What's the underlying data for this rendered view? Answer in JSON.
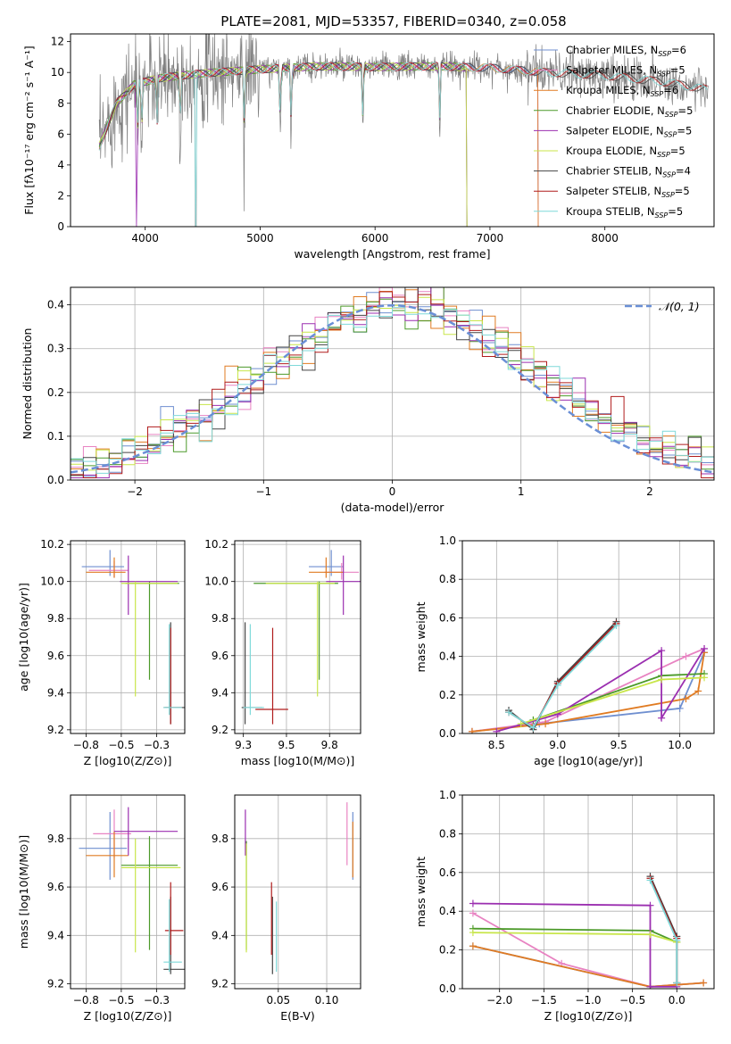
{
  "figure_title": "PLATE=2081, MJD=53357, FIBERID=0340, z=0.058",
  "colors": {
    "Chabrier MILES": "#6f8fd0",
    "Salpeter MILES": "#e883c2",
    "Kroupa MILES": "#e07b22",
    "Chabrier ELODIE": "#4c9a2a",
    "Salpeter ELODIE": "#9b2fb0",
    "Kroupa ELODIE": "#c8e64a",
    "Chabrier STELIB": "#444444",
    "Salpeter STELIB": "#b01c1c",
    "Kroupa STELIB": "#7fd9d9",
    "data": "#808080"
  },
  "chart_data": [
    {
      "id": "spectrum",
      "type": "line",
      "title": "PLATE=2081, MJD=53357, FIBERID=0340, z=0.058",
      "xlabel": "wavelength [Angstrom, rest frame]",
      "ylabel": "Flux [fλ10⁻¹⁷ erg cm⁻² s⁻¹ A⁻¹]",
      "xlim": [
        3350,
        8950
      ],
      "ylim": [
        0,
        12.5
      ],
      "xticks": [
        4000,
        5000,
        6000,
        7000,
        8000
      ],
      "yticks": [
        0,
        2,
        4,
        6,
        8,
        10,
        12
      ],
      "legend_position": "right",
      "legend": [
        {
          "label": "Chabrier MILES, N",
          "sub": "SSP",
          "n": "=6",
          "model": "Chabrier MILES"
        },
        {
          "label": "Salpeter MILES, N",
          "sub": "SSP",
          "n": "=5",
          "model": "Salpeter MILES"
        },
        {
          "label": "Kroupa MILES, N",
          "sub": "SSP",
          "n": "=6",
          "model": "Kroupa MILES"
        },
        {
          "label": "Chabrier ELODIE, N",
          "sub": "SSP",
          "n": "=5",
          "model": "Chabrier ELODIE"
        },
        {
          "label": "Salpeter ELODIE, N",
          "sub": "SSP",
          "n": "=5",
          "model": "Salpeter ELODIE"
        },
        {
          "label": "Kroupa ELODIE, N",
          "sub": "SSP",
          "n": "=5",
          "model": "Kroupa ELODIE"
        },
        {
          "label": "Chabrier STELIB, N",
          "sub": "SSP",
          "n": "=4",
          "model": "Chabrier STELIB"
        },
        {
          "label": "Salpeter STELIB, N",
          "sub": "SSP",
          "n": "=5",
          "model": "Salpeter STELIB"
        },
        {
          "label": "Kroupa STELIB, N",
          "sub": "SSP",
          "n": "=5",
          "model": "Kroupa STELIB"
        }
      ],
      "continuum": [
        [
          3600,
          5.2
        ],
        [
          3750,
          8.0
        ],
        [
          3900,
          9.2
        ],
        [
          4100,
          9.6
        ],
        [
          4300,
          9.8
        ],
        [
          4600,
          10.0
        ],
        [
          5000,
          10.2
        ],
        [
          5500,
          10.4
        ],
        [
          6000,
          10.35
        ],
        [
          6500,
          10.4
        ],
        [
          7000,
          10.3
        ],
        [
          7500,
          10.0
        ],
        [
          8000,
          9.8
        ],
        [
          8500,
          9.4
        ],
        [
          8900,
          8.9
        ]
      ],
      "absorption_lines": [
        [
          3934,
          0.0
        ],
        [
          3969,
          1.5
        ],
        [
          4102,
          2.0
        ],
        [
          4304,
          3.0
        ],
        [
          4861,
          5.0
        ],
        [
          5175,
          6.5
        ],
        [
          5270,
          8.0
        ],
        [
          5894,
          7.5
        ],
        [
          6563,
          7.8
        ]
      ],
      "model_gaps": [
        [
          3925,
          0
        ],
        [
          4440,
          0
        ],
        [
          6800,
          0
        ],
        [
          7420,
          0
        ]
      ]
    },
    {
      "id": "residual_distribution",
      "type": "line",
      "xlabel": "(data-model)/error",
      "ylabel": "Normed distribution",
      "xlim": [
        -2.5,
        2.5
      ],
      "ylim": [
        0,
        0.44
      ],
      "xticks": [
        -2,
        -1,
        0,
        1,
        2
      ],
      "yticks": [
        0.0,
        0.1,
        0.2,
        0.3,
        0.4
      ],
      "legend": [
        {
          "label": "𝒩(0, 1)",
          "style": "dashed"
        }
      ],
      "legend_position": "top-right",
      "bin_width": 0.1,
      "reference_curve": "normal(0,1)"
    },
    {
      "id": "age_vs_Z",
      "type": "scatter",
      "xlabel": "Z [log10(Z/Z⊙)]",
      "ylabel": "age  [log10(age/yr)]",
      "xlim": [
        -0.86,
        -0.05
      ],
      "ylim": [
        9.18,
        10.22
      ],
      "xticks": [
        -0.75,
        -0.5,
        -0.25
      ],
      "yticks": [
        9.2,
        9.4,
        9.6,
        9.8,
        10.0,
        10.2
      ],
      "points": [
        {
          "model": "Chabrier MILES",
          "x": -0.58,
          "y": 10.08,
          "xerr": [
            0.2,
            0.1
          ],
          "yerr": [
            0.05,
            0.09
          ]
        },
        {
          "model": "Salpeter MILES",
          "x": -0.55,
          "y": 10.06,
          "xerr": [
            0.18,
            0.1
          ],
          "yerr": [
            0.04,
            0.05
          ]
        },
        {
          "model": "Kroupa MILES",
          "x": -0.55,
          "y": 10.05,
          "xerr": [
            0.2,
            0.08
          ],
          "yerr": [
            0.03,
            0.08
          ]
        },
        {
          "model": "Chabrier ELODIE",
          "x": -0.3,
          "y": 9.99,
          "xerr": [
            0.17,
            0.21
          ],
          "yerr": [
            0.52,
            0.01
          ]
        },
        {
          "model": "Salpeter ELODIE",
          "x": -0.45,
          "y": 10.0,
          "xerr": [
            0.06,
            0.35
          ],
          "yerr": [
            0.18,
            0.14
          ]
        },
        {
          "model": "Kroupa ELODIE",
          "x": -0.4,
          "y": 9.99,
          "xerr": [
            0.1,
            0.3
          ],
          "yerr": [
            0.61,
            0.01
          ]
        },
        {
          "model": "Chabrier STELIB",
          "x": -0.15,
          "y": 9.32,
          "xerr": [
            0.05,
            0.1
          ],
          "yerr": [
            0.09,
            0.46
          ]
        },
        {
          "model": "Salpeter STELIB",
          "x": -0.15,
          "y": 9.32,
          "xerr": [
            0.04,
            0.08
          ],
          "yerr": [
            0.09,
            0.43
          ]
        },
        {
          "model": "Kroupa STELIB",
          "x": -0.16,
          "y": 9.32,
          "xerr": [
            0.04,
            0.09
          ],
          "yerr": [
            0.04,
            0.45
          ]
        }
      ]
    },
    {
      "id": "age_vs_mass",
      "type": "scatter",
      "xlabel": "mass [log10(M/M⊙)]",
      "ylabel": "",
      "xlim": [
        9.2,
        9.93
      ],
      "ylim": [
        9.18,
        10.22
      ],
      "xticks": [
        9.25,
        9.5,
        9.75
      ],
      "yticks": [
        9.2,
        9.4,
        9.6,
        9.8,
        10.0,
        10.2
      ],
      "points": [
        {
          "model": "Chabrier MILES",
          "x": 9.76,
          "y": 10.08,
          "xerr": [
            0.13,
            0.07
          ],
          "yerr": [
            0.05,
            0.09
          ]
        },
        {
          "model": "Salpeter MILES",
          "x": 9.82,
          "y": 10.05,
          "xerr": [
            0.1,
            0.1
          ],
          "yerr": [
            0.04,
            0.05
          ]
        },
        {
          "model": "Kroupa MILES",
          "x": 9.73,
          "y": 10.05,
          "xerr": [
            0.1,
            0.1
          ],
          "yerr": [
            0.03,
            0.08
          ]
        },
        {
          "model": "Chabrier ELODIE",
          "x": 9.69,
          "y": 9.99,
          "xerr": [
            0.38,
            0.11
          ],
          "yerr": [
            0.52,
            0.01
          ]
        },
        {
          "model": "Salpeter ELODIE",
          "x": 9.83,
          "y": 10.0,
          "xerr": [
            0.1,
            0.1
          ],
          "yerr": [
            0.18,
            0.14
          ]
        },
        {
          "model": "Kroupa ELODIE",
          "x": 9.68,
          "y": 9.99,
          "xerr": [
            0.3,
            0.1
          ],
          "yerr": [
            0.61,
            0.01
          ]
        },
        {
          "model": "Chabrier STELIB",
          "x": 9.26,
          "y": 9.32,
          "xerr": [
            0.02,
            0.1
          ],
          "yerr": [
            0.09,
            0.46
          ]
        },
        {
          "model": "Salpeter STELIB",
          "x": 9.42,
          "y": 9.31,
          "xerr": [
            0.1,
            0.09
          ],
          "yerr": [
            0.08,
            0.44
          ]
        },
        {
          "model": "Kroupa STELIB",
          "x": 9.29,
          "y": 9.32,
          "xerr": [
            0.04,
            0.08
          ],
          "yerr": [
            0.04,
            0.45
          ]
        }
      ]
    },
    {
      "id": "weight_vs_age",
      "type": "line",
      "xlabel": "age  [log10(age/yr)]",
      "ylabel": "mass weight",
      "xlim": [
        8.22,
        10.28
      ],
      "ylim": [
        0,
        1
      ],
      "xticks": [
        8.5,
        9.0,
        9.5,
        10.0
      ],
      "yticks": [
        0.0,
        0.2,
        0.4,
        0.6,
        0.8,
        1.0
      ],
      "series": [
        {
          "model": "Chabrier MILES",
          "x": [
            8.3,
            8.85,
            10.0,
            10.2
          ],
          "y": [
            0.01,
            0.05,
            0.13,
            0.42
          ]
        },
        {
          "model": "Salpeter MILES",
          "x": [
            8.3,
            8.9,
            10.05,
            10.2
          ],
          "y": [
            0.01,
            0.06,
            0.4,
            0.44
          ]
        },
        {
          "model": "Kroupa MILES",
          "x": [
            8.3,
            8.9,
            10.05,
            10.15,
            10.2
          ],
          "y": [
            0.01,
            0.05,
            0.18,
            0.22,
            0.42
          ]
        },
        {
          "model": "Chabrier ELODIE",
          "x": [
            8.8,
            9.85,
            10.2
          ],
          "y": [
            0.07,
            0.3,
            0.31
          ]
        },
        {
          "model": "Salpeter ELODIE",
          "x": [
            8.5,
            9.0,
            9.85,
            9.85,
            10.2
          ],
          "y": [
            0.01,
            0.1,
            0.43,
            0.08,
            0.44
          ]
        },
        {
          "model": "Kroupa ELODIE",
          "x": [
            8.7,
            9.85,
            10.2
          ],
          "y": [
            0.05,
            0.28,
            0.29
          ]
        },
        {
          "model": "Chabrier STELIB",
          "x": [
            8.6,
            8.8,
            9.0,
            9.48
          ],
          "y": [
            0.12,
            0.02,
            0.27,
            0.58
          ]
        },
        {
          "model": "Salpeter STELIB",
          "x": [
            8.6,
            8.8,
            9.0,
            9.48
          ],
          "y": [
            0.11,
            0.03,
            0.26,
            0.57
          ]
        },
        {
          "model": "Kroupa STELIB",
          "x": [
            8.6,
            8.8,
            9.0,
            9.48
          ],
          "y": [
            0.11,
            0.03,
            0.25,
            0.56
          ]
        }
      ]
    },
    {
      "id": "mass_vs_Z",
      "type": "scatter",
      "xlabel": "Z [log10(Z/Z⊙)]",
      "ylabel": "mass [log10(M/M⊙)]",
      "xlim": [
        -0.86,
        -0.05
      ],
      "ylim": [
        9.18,
        9.98
      ],
      "xticks": [
        -0.75,
        -0.5,
        -0.25
      ],
      "yticks": [
        9.2,
        9.4,
        9.6,
        9.8
      ],
      "points": [
        {
          "model": "Chabrier MILES",
          "x": -0.58,
          "y": 9.76,
          "xerr": [
            0.22,
            0.12
          ],
          "yerr": [
            0.13,
            0.15
          ]
        },
        {
          "model": "Salpeter MILES",
          "x": -0.55,
          "y": 9.82,
          "xerr": [
            0.15,
            0.12
          ],
          "yerr": [
            0.1,
            0.1
          ]
        },
        {
          "model": "Kroupa MILES",
          "x": -0.55,
          "y": 9.73,
          "xerr": [
            0.2,
            0.1
          ],
          "yerr": [
            0.09,
            0.1
          ]
        },
        {
          "model": "Chabrier ELODIE",
          "x": -0.3,
          "y": 9.69,
          "xerr": [
            0.2,
            0.2
          ],
          "yerr": [
            0.35,
            0.12
          ]
        },
        {
          "model": "Salpeter ELODIE",
          "x": -0.45,
          "y": 9.83,
          "xerr": [
            0.1,
            0.35
          ],
          "yerr": [
            0.1,
            0.1
          ]
        },
        {
          "model": "Kroupa ELODIE",
          "x": -0.4,
          "y": 9.68,
          "xerr": [
            0.1,
            0.32
          ],
          "yerr": [
            0.35,
            0.12
          ]
        },
        {
          "model": "Chabrier STELIB",
          "x": -0.15,
          "y": 9.26,
          "xerr": [
            0.05,
            0.1
          ],
          "yerr": [
            0.02,
            0.3
          ]
        },
        {
          "model": "Salpeter STELIB",
          "x": -0.15,
          "y": 9.42,
          "xerr": [
            0.04,
            0.09
          ],
          "yerr": [
            0.1,
            0.2
          ]
        },
        {
          "model": "Kroupa STELIB",
          "x": -0.16,
          "y": 9.29,
          "xerr": [
            0.04,
            0.09
          ],
          "yerr": [
            0.04,
            0.26
          ]
        }
      ]
    },
    {
      "id": "mass_vs_ebv",
      "type": "scatter",
      "xlabel": "E(B-V)",
      "ylabel": "",
      "xlim": [
        0.005,
        0.135
      ],
      "ylim": [
        9.18,
        9.98
      ],
      "xticks": [
        0.05,
        0.1
      ],
      "xticklabels": [
        "0.05",
        "0.10"
      ],
      "yticks": [
        9.2,
        9.4,
        9.6,
        9.8
      ],
      "points": [
        {
          "model": "Chabrier MILES",
          "x": 0.127,
          "y": 9.76,
          "yerr": [
            0.13,
            0.15
          ]
        },
        {
          "model": "Salpeter MILES",
          "x": 0.121,
          "y": 9.82,
          "yerr": [
            0.13,
            0.13
          ]
        },
        {
          "model": "Kroupa MILES",
          "x": 0.127,
          "y": 9.73,
          "yerr": [
            0.09,
            0.14
          ]
        },
        {
          "model": "Chabrier ELODIE",
          "x": 0.017,
          "y": 9.69,
          "yerr": [
            0.35,
            0.1
          ]
        },
        {
          "model": "Salpeter ELODIE",
          "x": 0.016,
          "y": 9.83,
          "yerr": [
            0.1,
            0.09
          ]
        },
        {
          "model": "Kroupa ELODIE",
          "x": 0.017,
          "y": 9.68,
          "yerr": [
            0.35,
            0.1
          ]
        },
        {
          "model": "Chabrier STELIB",
          "x": 0.044,
          "y": 9.26,
          "yerr": [
            0.02,
            0.3
          ]
        },
        {
          "model": "Salpeter STELIB",
          "x": 0.043,
          "y": 9.42,
          "yerr": [
            0.1,
            0.2
          ]
        },
        {
          "model": "Kroupa STELIB",
          "x": 0.048,
          "y": 9.29,
          "yerr": [
            0.04,
            0.25
          ]
        }
      ]
    },
    {
      "id": "weight_vs_Z",
      "type": "line",
      "xlabel": "Z [log10(Z/Z⊙)]",
      "ylabel": "mass weight",
      "xlim": [
        -2.42,
        0.42
      ],
      "ylim": [
        0,
        1
      ],
      "xticks": [
        -2.0,
        -1.5,
        -1.0,
        -0.5,
        0.0
      ],
      "yticks": [
        0.0,
        0.2,
        0.4,
        0.6,
        0.8,
        1.0
      ],
      "series": [
        {
          "model": "Chabrier MILES",
          "x": [
            -2.3,
            -0.3,
            0.3
          ],
          "y": [
            0.22,
            0.01,
            0.03
          ]
        },
        {
          "model": "Salpeter MILES",
          "x": [
            -2.3,
            -1.3,
            -0.3,
            0.3
          ],
          "y": [
            0.39,
            0.13,
            0.01,
            0.03
          ]
        },
        {
          "model": "Kroupa MILES",
          "x": [
            -2.3,
            -0.3,
            0.3
          ],
          "y": [
            0.22,
            0.01,
            0.03
          ]
        },
        {
          "model": "Chabrier ELODIE",
          "x": [
            -2.3,
            -0.3,
            0.0
          ],
          "y": [
            0.31,
            0.3,
            0.24
          ]
        },
        {
          "model": "Salpeter ELODIE",
          "x": [
            -2.3,
            -0.3,
            -0.3,
            0.0
          ],
          "y": [
            0.44,
            0.43,
            0.01,
            0.01
          ]
        },
        {
          "model": "Kroupa ELODIE",
          "x": [
            -2.3,
            -0.3,
            0.0
          ],
          "y": [
            0.29,
            0.28,
            0.24
          ]
        },
        {
          "model": "Chabrier STELIB",
          "x": [
            -0.3,
            0.0,
            0.0
          ],
          "y": [
            0.58,
            0.27,
            0.03
          ]
        },
        {
          "model": "Salpeter STELIB",
          "x": [
            -0.3,
            0.0,
            0.0
          ],
          "y": [
            0.57,
            0.26,
            0.03
          ]
        },
        {
          "model": "Kroupa STELIB",
          "x": [
            -0.3,
            0.0,
            0.0
          ],
          "y": [
            0.56,
            0.25,
            0.03
          ]
        }
      ]
    }
  ]
}
